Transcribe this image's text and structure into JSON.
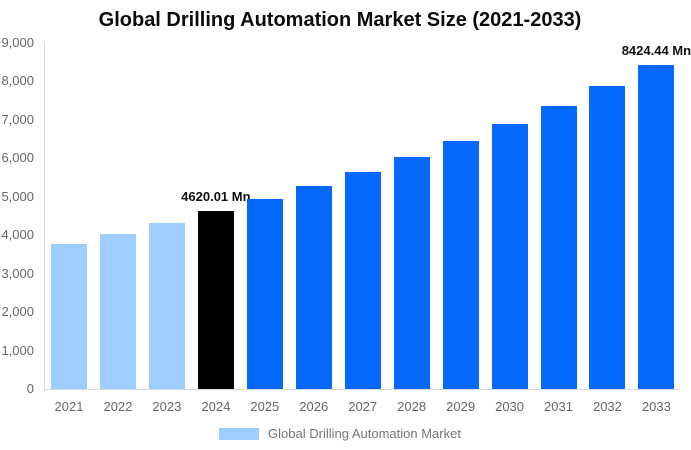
{
  "header": {
    "title": "Global Drilling Automation Market Size (2021-2033)"
  },
  "legend": {
    "label": "Global Drilling Automation Market",
    "swatch_color": "#9dceff"
  },
  "colors": {
    "historical_bar": "#9dceff",
    "base_year_bar": "#000000",
    "forecast_bar": "#0768fd",
    "axis_line": "#d9d9d9",
    "tick_text": "#666666",
    "value_label_text": "#111111"
  },
  "chart_data": {
    "type": "bar",
    "title": "Global Drilling Automation Market Size (2021-2033)",
    "unit": "Mn",
    "xlabel": "",
    "ylabel": "",
    "categories": [
      "2021",
      "2022",
      "2023",
      "2024",
      "2025",
      "2026",
      "2027",
      "2028",
      "2029",
      "2030",
      "2031",
      "2032",
      "2033"
    ],
    "values": [
      3782,
      4043,
      4322,
      4620.01,
      4939,
      5280,
      5644,
      6034,
      6450,
      6896,
      7372,
      7880,
      8424.44
    ],
    "bar_colors": [
      "#9dceff",
      "#9dceff",
      "#9dceff",
      "#000000",
      "#0768fd",
      "#0768fd",
      "#0768fd",
      "#0768fd",
      "#0768fd",
      "#0768fd",
      "#0768fd",
      "#0768fd",
      "#0768fd"
    ],
    "point_labels": [
      "",
      "",
      "",
      "4620.01 Mn",
      "",
      "",
      "",
      "",
      "",
      "",
      "",
      "",
      "8424.44 Mn"
    ],
    "ylim": [
      0,
      9000
    ],
    "ytick_step": 1000,
    "ytick_labels": [
      "0",
      "1,000",
      "2,000",
      "3,000",
      "4,000",
      "5,000",
      "6,000",
      "7,000",
      "8,000",
      "9,000"
    ],
    "grid": false,
    "legend_position": "bottom",
    "legend_entries": [
      "Global Drilling Automation Market"
    ]
  }
}
